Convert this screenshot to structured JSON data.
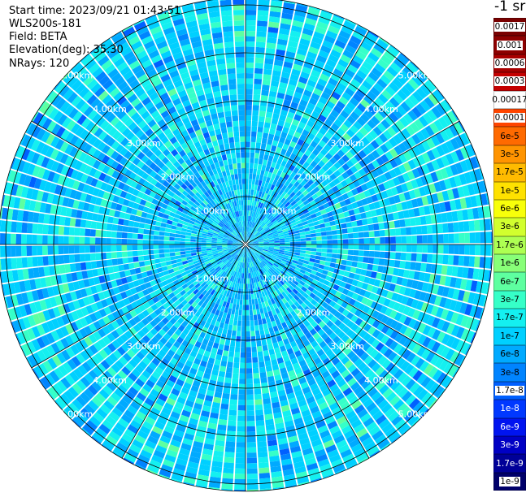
{
  "header": {
    "start_time": "Start time: 2023/09/21 01:43:51",
    "instrument": "WLS200s-181",
    "field": "Field: BETA",
    "elevation": "Elevation(deg): 35.30",
    "nrays": "NRays: 120"
  },
  "colorbar": {
    "unit": "-1 sr",
    "levels": [
      {
        "label": "0.0017",
        "color": "#7a0000",
        "text_color": "#ffffff",
        "label_bg": "#ffffff",
        "label_color": "#000000"
      },
      {
        "label": "0.001",
        "color": "#8e0000",
        "text_color": "#ffffff",
        "label_bg": "#ffffff",
        "label_color": "#000000"
      },
      {
        "label": "0.0006",
        "color": "#a80000",
        "text_color": "#ffffff",
        "label_bg": "#ffffff",
        "label_color": "#000000"
      },
      {
        "label": "0.0003",
        "color": "#c40000",
        "text_color": "#ffffff",
        "label_bg": "#ffffff",
        "label_color": "#000000"
      },
      {
        "label": "0.00017",
        "color": "#ffffff",
        "text_color": "#000000",
        "label_bg": "",
        "label_color": "#000000"
      },
      {
        "label": "0.0001",
        "color": "#ff4500",
        "text_color": "#000000",
        "label_bg": "#ffffff",
        "label_color": "#000000"
      },
      {
        "label": "6e-5",
        "color": "#ff6a00",
        "text_color": "#000000",
        "label_bg": "",
        "label_color": "#000000"
      },
      {
        "label": "3e-5",
        "color": "#ff9400",
        "text_color": "#000000",
        "label_bg": "",
        "label_color": "#000000"
      },
      {
        "label": "1.7e-5",
        "color": "#ffbb00",
        "text_color": "#000000",
        "label_bg": "",
        "label_color": "#000000"
      },
      {
        "label": "1e-5",
        "color": "#ffe100",
        "text_color": "#000000",
        "label_bg": "",
        "label_color": "#000000"
      },
      {
        "label": "6e-6",
        "color": "#f8ff0a",
        "text_color": "#000000",
        "label_bg": "",
        "label_color": "#000000"
      },
      {
        "label": "3e-6",
        "color": "#d2ff2e",
        "text_color": "#000000",
        "label_bg": "",
        "label_color": "#000000"
      },
      {
        "label": "1.7e-6",
        "color": "#aeff52",
        "text_color": "#000000",
        "label_bg": "",
        "label_color": "#000000"
      },
      {
        "label": "1e-6",
        "color": "#88ff78",
        "text_color": "#000000",
        "label_bg": "",
        "label_color": "#000000"
      },
      {
        "label": "6e-7",
        "color": "#5effa0",
        "text_color": "#000000",
        "label_bg": "",
        "label_color": "#000000"
      },
      {
        "label": "3e-7",
        "color": "#36ffc8",
        "text_color": "#000000",
        "label_bg": "",
        "label_color": "#000000"
      },
      {
        "label": "1.7e-7",
        "color": "#14f0f0",
        "text_color": "#000000",
        "label_bg": "",
        "label_color": "#000000"
      },
      {
        "label": "1e-7",
        "color": "#00d0ff",
        "text_color": "#000000",
        "label_bg": "",
        "label_color": "#000000"
      },
      {
        "label": "6e-8",
        "color": "#00aaff",
        "text_color": "#000000",
        "label_bg": "",
        "label_color": "#000000"
      },
      {
        "label": "3e-8",
        "color": "#0084ff",
        "text_color": "#000000",
        "label_bg": "",
        "label_color": "#000000"
      },
      {
        "label": "1.7e-8",
        "color": "#0060ff",
        "text_color": "#000000",
        "label_bg": "#ffffff",
        "label_color": "#000000"
      },
      {
        "label": "1e-8",
        "color": "#0038ff",
        "text_color": "#ffffff",
        "label_bg": "",
        "label_color": "#ffffff"
      },
      {
        "label": "6e-9",
        "color": "#0014f0",
        "text_color": "#ffffff",
        "label_bg": "",
        "label_color": "#ffffff"
      },
      {
        "label": "3e-9",
        "color": "#0000c4",
        "text_color": "#ffffff",
        "label_bg": "",
        "label_color": "#ffffff"
      },
      {
        "label": "1.7e-9",
        "color": "#000098",
        "text_color": "#ffffff",
        "label_bg": "",
        "label_color": "#ffffff"
      },
      {
        "label": "1e-9",
        "color": "#00006a",
        "text_color": "#ffffff",
        "label_bg": "#ffffff",
        "label_color": "#000000"
      }
    ]
  },
  "chart_data": {
    "type": "heatmap",
    "projection": "polar",
    "title": "",
    "field": "BETA",
    "elevation_deg": 35.3,
    "n_rays": 120,
    "range_rings_km": [
      1.0,
      2.0,
      3.0,
      4.0,
      5.0
    ],
    "range_ring_labels": [
      "1.00km",
      "2.00km",
      "3.00km",
      "4.00km",
      "5.00km"
    ],
    "max_range_km": 5.15,
    "azimuth_lines_deg": [
      0,
      30,
      60,
      90,
      120,
      150,
      180,
      210,
      240,
      270,
      300,
      330
    ],
    "value_distribution": "mostly between 1.7e-8 and 3e-7, cyan/light-blue speckle with bright streaks near the outer edge",
    "colors": {
      "background": "#ffffff",
      "grid": "#000000",
      "ring_label": "#ffffff"
    }
  }
}
